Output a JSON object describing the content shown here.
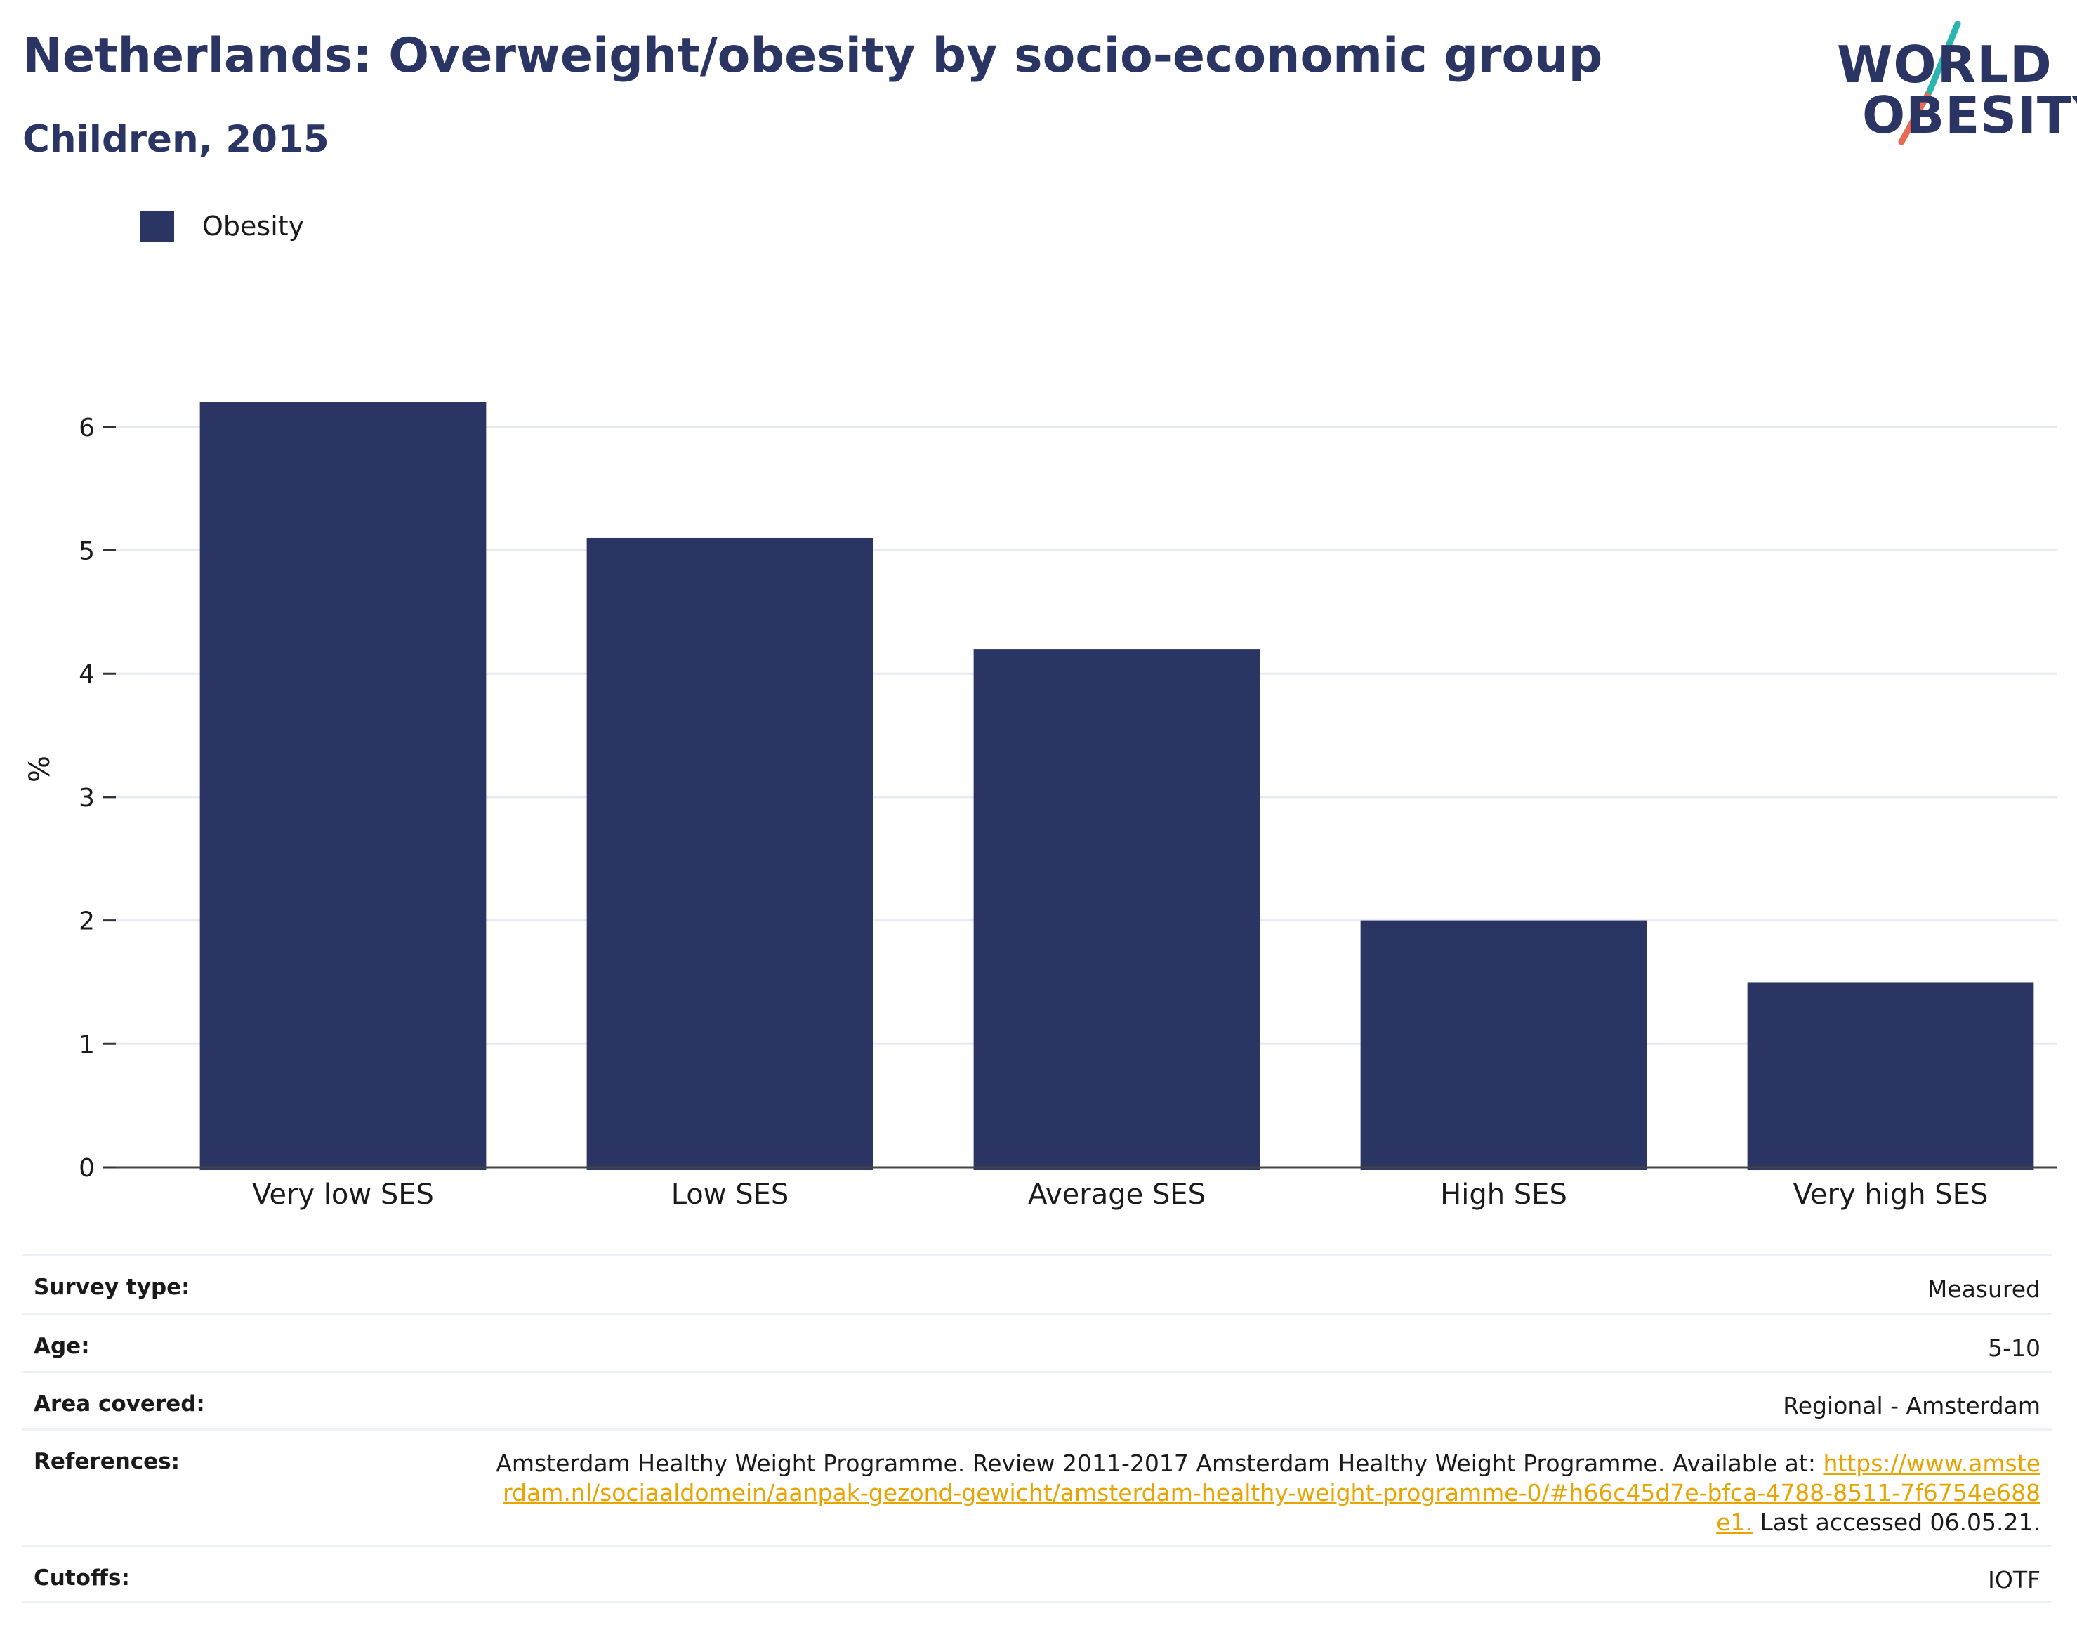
{
  "header": {
    "title": "Netherlands: Overweight/obesity by socio-economic group",
    "subtitle": "Children, 2015"
  },
  "logo": {
    "line1": "WORLD",
    "line2": "OBESITY",
    "colors": {
      "text": "#2a3563",
      "slash_top": "#2bb5b0",
      "slash_bottom": "#e86a55"
    }
  },
  "chart_data": {
    "type": "bar",
    "categories": [
      "Very low SES",
      "Low SES",
      "Average SES",
      "High SES",
      "Very high SES"
    ],
    "series": [
      {
        "name": "Obesity",
        "values": [
          6.2,
          5.1,
          4.2,
          2.0,
          1.5
        ],
        "color": "#2a3563"
      }
    ],
    "ylabel": "%",
    "xlabel": "",
    "ylim": [
      0,
      6.5
    ],
    "yticks": [
      0,
      1,
      2,
      3,
      4,
      5,
      6
    ],
    "grid": true,
    "legend_position": "top-left"
  },
  "info": {
    "rows": [
      {
        "label": "Survey type:",
        "value": "Measured"
      },
      {
        "label": "Age:",
        "value": "5-10"
      },
      {
        "label": "Area covered:",
        "value": "Regional - Amsterdam"
      },
      {
        "label": "References:",
        "value": "Amsterdam Healthy Weight Programme. Review 2011-2017 Amsterdam Healthy Weight Programme. Available at:",
        "link": "https://www.amsterdam.nl/sociaaldomein/aanpak-gezond-gewicht/amsterdam-healthy-weight-programme-0/#h66c45d7e-bfca-4788-8511-7f6754e688e1.",
        "suffix": "Last accessed 06.05.21."
      },
      {
        "label": "Cutoffs:",
        "value": "IOTF"
      }
    ]
  }
}
